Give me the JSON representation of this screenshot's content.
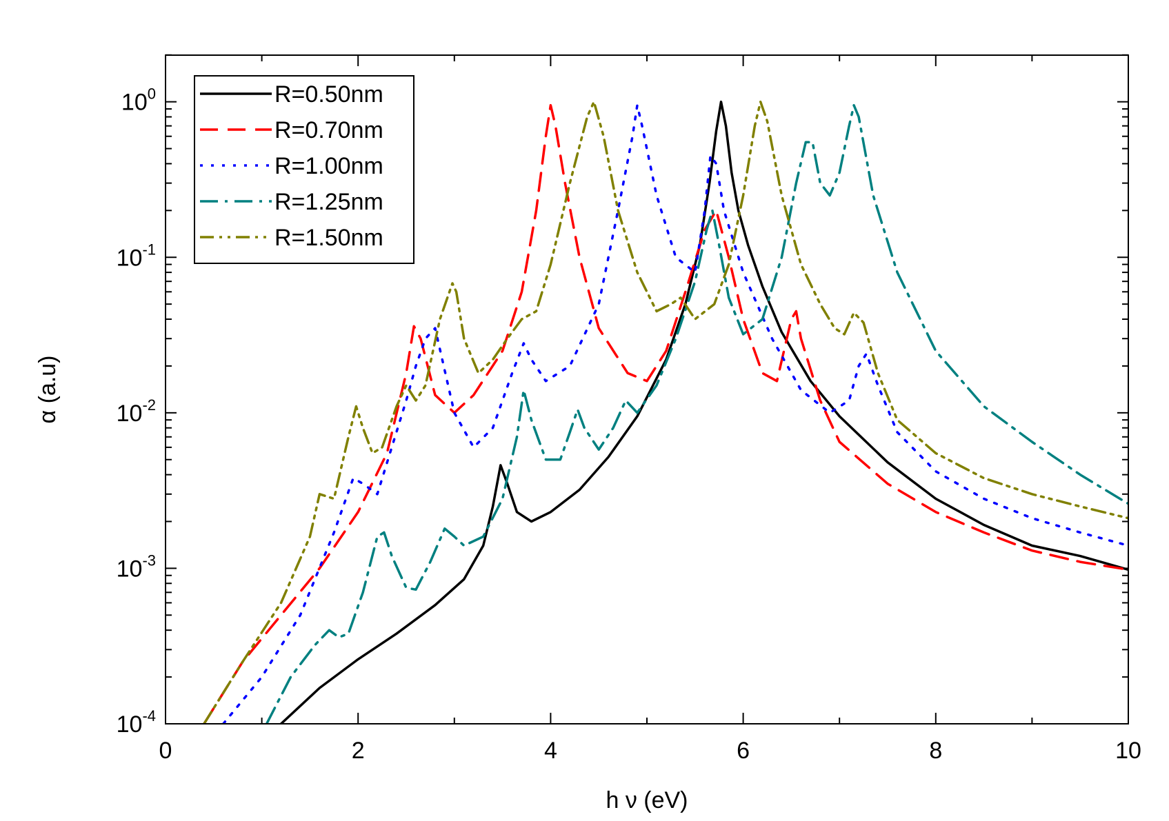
{
  "chart_data": {
    "type": "line",
    "title": "",
    "xlabel": "h ν (eV)",
    "ylabel": "α (a.u)",
    "xlim": [
      0,
      10
    ],
    "ylim": [
      0.0001,
      2
    ],
    "yscale": "log",
    "x_ticks": [
      0,
      2,
      4,
      6,
      8,
      10
    ],
    "x_tick_labels": [
      "0",
      "2",
      "4",
      "6",
      "8",
      "10"
    ],
    "y_ticks": [
      0.0001,
      0.001,
      0.01,
      0.1,
      1
    ],
    "y_tick_labels": [
      {
        "base": "10",
        "exp": "-4"
      },
      {
        "base": "10",
        "exp": "-3"
      },
      {
        "base": "10",
        "exp": "-2"
      },
      {
        "base": "10",
        "exp": "-1"
      },
      {
        "base": "10",
        "exp": "0"
      }
    ],
    "legend_position": "top-left",
    "series": [
      {
        "name": "R=0.50nm",
        "color": "#000000",
        "dash": "solid",
        "x": [
          1.2,
          1.6,
          2.0,
          2.4,
          2.8,
          3.1,
          3.3,
          3.4,
          3.48,
          3.55,
          3.65,
          3.8,
          4.0,
          4.3,
          4.6,
          4.9,
          5.2,
          5.4,
          5.55,
          5.65,
          5.72,
          5.77,
          5.82,
          5.88,
          5.95,
          6.05,
          6.2,
          6.4,
          6.7,
          7.0,
          7.5,
          8.0,
          8.5,
          9.0,
          9.5,
          10.0
        ],
        "y": [
          0.0001,
          0.00017,
          0.00026,
          0.00038,
          0.00058,
          0.00085,
          0.0014,
          0.0025,
          0.0046,
          0.0035,
          0.0023,
          0.002,
          0.0023,
          0.0032,
          0.0052,
          0.0095,
          0.022,
          0.05,
          0.12,
          0.3,
          0.65,
          1.0,
          0.7,
          0.35,
          0.2,
          0.12,
          0.065,
          0.033,
          0.016,
          0.0095,
          0.0048,
          0.0028,
          0.0019,
          0.0014,
          0.0012,
          0.00098
        ]
      },
      {
        "name": "R=0.70nm",
        "color": "#ff0000",
        "dash": "dashed",
        "x": [
          0.4,
          0.8,
          1.2,
          1.6,
          2.0,
          2.3,
          2.5,
          2.58,
          2.65,
          2.8,
          3.0,
          3.2,
          3.5,
          3.7,
          3.85,
          3.95,
          4.0,
          4.05,
          4.15,
          4.3,
          4.5,
          4.8,
          5.0,
          5.2,
          5.4,
          5.6,
          5.72,
          5.85,
          6.0,
          6.2,
          6.35,
          6.5,
          6.55,
          6.6,
          6.8,
          7.0,
          7.5,
          8.0,
          8.5,
          9.0,
          9.5,
          10.0
        ],
        "y": [
          0.0001,
          0.00025,
          0.0005,
          0.001,
          0.0023,
          0.0055,
          0.018,
          0.036,
          0.03,
          0.013,
          0.01,
          0.013,
          0.025,
          0.06,
          0.2,
          0.6,
          0.95,
          0.7,
          0.3,
          0.1,
          0.035,
          0.018,
          0.016,
          0.025,
          0.06,
          0.15,
          0.2,
          0.1,
          0.04,
          0.018,
          0.016,
          0.04,
          0.045,
          0.03,
          0.012,
          0.0065,
          0.0035,
          0.0023,
          0.0017,
          0.0013,
          0.0011,
          0.00098
        ]
      },
      {
        "name": "R=1.00nm",
        "color": "#0000ff",
        "dash": "dotted",
        "x": [
          0.6,
          1.0,
          1.4,
          1.75,
          1.95,
          2.05,
          2.2,
          2.5,
          2.6,
          2.7,
          2.8,
          3.0,
          3.2,
          3.4,
          3.6,
          3.72,
          3.8,
          3.95,
          4.2,
          4.5,
          4.7,
          4.85,
          4.9,
          4.95,
          5.1,
          5.3,
          5.5,
          5.6,
          5.66,
          5.72,
          5.8,
          6.0,
          6.3,
          6.6,
          6.9,
          7.1,
          7.2,
          7.28,
          7.4,
          7.6,
          8.0,
          8.5,
          9.0,
          9.5,
          10.0
        ],
        "y": [
          0.0001,
          0.0002,
          0.0005,
          0.0017,
          0.0038,
          0.0035,
          0.003,
          0.012,
          0.02,
          0.03,
          0.035,
          0.01,
          0.006,
          0.008,
          0.018,
          0.028,
          0.022,
          0.016,
          0.02,
          0.05,
          0.2,
          0.6,
          0.95,
          0.7,
          0.25,
          0.1,
          0.08,
          0.2,
          0.45,
          0.4,
          0.2,
          0.08,
          0.03,
          0.014,
          0.01,
          0.012,
          0.02,
          0.024,
          0.015,
          0.0075,
          0.0042,
          0.0028,
          0.0021,
          0.0017,
          0.0014
        ]
      },
      {
        "name": "R=1.25nm",
        "color": "#008080",
        "dash": "dashdot",
        "x": [
          1.05,
          1.3,
          1.55,
          1.7,
          1.8,
          1.9,
          2.05,
          2.2,
          2.27,
          2.35,
          2.5,
          2.6,
          2.75,
          2.9,
          3.0,
          3.1,
          3.3,
          3.5,
          3.65,
          3.72,
          3.8,
          3.95,
          4.1,
          4.2,
          4.28,
          4.35,
          4.5,
          4.65,
          4.78,
          4.9,
          5.1,
          5.3,
          5.5,
          5.62,
          5.68,
          5.75,
          5.85,
          6.0,
          6.2,
          6.4,
          6.55,
          6.65,
          6.72,
          6.8,
          6.9,
          7.0,
          7.1,
          7.15,
          7.2,
          7.35,
          7.6,
          8.0,
          8.5,
          9.0,
          9.5,
          10.0
        ],
        "y": [
          0.0001,
          0.0002,
          0.00032,
          0.0004,
          0.00036,
          0.00038,
          0.0007,
          0.0016,
          0.0017,
          0.0012,
          0.00075,
          0.00073,
          0.0011,
          0.0018,
          0.0016,
          0.0014,
          0.0016,
          0.0028,
          0.007,
          0.014,
          0.009,
          0.005,
          0.005,
          0.0075,
          0.0105,
          0.008,
          0.0058,
          0.008,
          0.012,
          0.01,
          0.015,
          0.03,
          0.07,
          0.15,
          0.2,
          0.12,
          0.055,
          0.032,
          0.04,
          0.1,
          0.3,
          0.55,
          0.55,
          0.3,
          0.25,
          0.35,
          0.7,
          0.95,
          0.8,
          0.25,
          0.08,
          0.025,
          0.011,
          0.0065,
          0.004,
          0.0026
        ]
      },
      {
        "name": "R=1.50nm",
        "color": "#808000",
        "dash": "dashdotdot",
        "x": [
          0.4,
          0.8,
          1.2,
          1.5,
          1.6,
          1.75,
          1.9,
          1.98,
          2.05,
          2.15,
          2.25,
          2.4,
          2.5,
          2.6,
          2.7,
          2.85,
          2.98,
          3.02,
          3.1,
          3.25,
          3.4,
          3.55,
          3.7,
          3.85,
          4.0,
          4.2,
          4.38,
          4.45,
          4.55,
          4.7,
          4.9,
          5.1,
          5.25,
          5.35,
          5.5,
          5.7,
          5.85,
          6.0,
          6.12,
          6.18,
          6.25,
          6.4,
          6.6,
          6.8,
          6.95,
          7.05,
          7.15,
          7.25,
          7.4,
          7.6,
          8.0,
          8.5,
          9.0,
          9.5,
          10.0
        ],
        "y": [
          0.0001,
          0.00025,
          0.0006,
          0.0016,
          0.003,
          0.0028,
          0.007,
          0.011,
          0.008,
          0.0055,
          0.006,
          0.011,
          0.015,
          0.012,
          0.015,
          0.04,
          0.068,
          0.06,
          0.03,
          0.018,
          0.022,
          0.03,
          0.04,
          0.045,
          0.09,
          0.3,
          0.8,
          1.0,
          0.6,
          0.2,
          0.08,
          0.045,
          0.05,
          0.055,
          0.04,
          0.05,
          0.09,
          0.25,
          0.7,
          1.0,
          0.75,
          0.25,
          0.09,
          0.05,
          0.035,
          0.032,
          0.044,
          0.038,
          0.018,
          0.009,
          0.0055,
          0.0038,
          0.003,
          0.0025,
          0.0021
        ]
      }
    ]
  }
}
